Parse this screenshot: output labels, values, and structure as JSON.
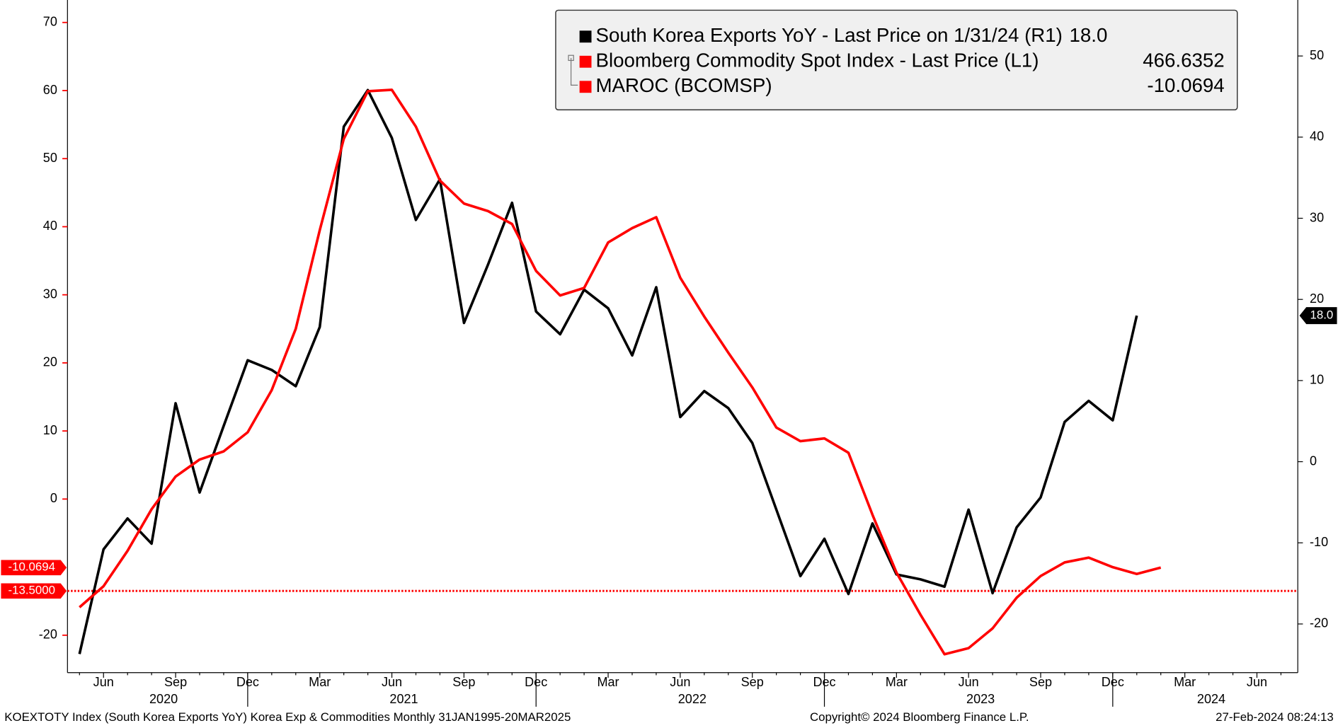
{
  "chart_data": {
    "type": "line",
    "categories": [
      null,
      "Jun",
      null,
      null,
      "Sep",
      null,
      null,
      "Dec",
      null,
      null,
      "Mar",
      null,
      null,
      "Jun",
      null,
      null,
      "Sep",
      null,
      null,
      "Dec",
      null,
      null,
      "Mar",
      null,
      null,
      "Jun",
      null,
      null,
      "Sep",
      null,
      null,
      "Dec",
      null,
      null,
      "Mar",
      null,
      null,
      "Jun",
      null,
      null,
      "Sep",
      null,
      null,
      "Dec",
      null,
      null,
      "Mar",
      null,
      null,
      "Jun",
      null
    ],
    "year_labels": [
      "2020",
      "2021",
      "2022",
      "2023",
      "2024"
    ],
    "series": [
      {
        "name": "South Korea Exports YoY - Last Price on 1/31/24 (R1)",
        "color": "#000000",
        "axis": "y2",
        "last_label": "18.0",
        "values": [
          -23.7,
          -10.8,
          -7.0,
          -10.1,
          7.2,
          -3.8,
          4.4,
          12.5,
          11.3,
          9.3,
          16.6,
          41.3,
          45.8,
          39.9,
          29.8,
          34.8,
          17.1,
          24.3,
          31.9,
          18.5,
          15.7,
          21.2,
          18.9,
          13.1,
          21.5,
          5.5,
          8.7,
          6.6,
          2.3,
          -5.9,
          -14.1,
          -9.5,
          -16.3,
          -7.6,
          -13.9,
          -14.5,
          -15.4,
          -5.9,
          -16.2,
          -8.1,
          -4.4,
          4.9,
          7.5,
          5.1,
          18.0,
          null,
          null,
          null,
          null,
          null,
          null
        ]
      },
      {
        "name": "MAROC (BCOMSP)",
        "color": "#ff0000",
        "axis": "y",
        "last_label": "-10.0694",
        "values": [
          -15.9,
          -12.8,
          -7.6,
          -1.5,
          3.3,
          5.8,
          7.0,
          9.8,
          16.0,
          25.0,
          39.5,
          52.9,
          59.9,
          60.1,
          54.7,
          46.8,
          43.4,
          42.3,
          40.4,
          33.5,
          29.9,
          31.0,
          37.7,
          39.8,
          41.4,
          32.5,
          26.8,
          21.5,
          16.4,
          10.5,
          8.5,
          8.9,
          6.8,
          -2.3,
          -10.8,
          -17.0,
          -22.8,
          -21.9,
          -19.0,
          -14.5,
          -11.3,
          -9.3,
          -8.6,
          -10.0,
          -11.0,
          -10.0694,
          null,
          null,
          null,
          null,
          null
        ]
      }
    ],
    "other_legend": {
      "name": "Bloomberg Commodity Spot Index - Last Price (L1)",
      "color": "#ff0000",
      "value": "466.6352"
    },
    "reference_line": {
      "value": -13.5,
      "label": "-13.5000",
      "color": "#ff0000"
    },
    "xlim": [
      -0.5,
      50.7
    ],
    "ylim": [
      -25.5,
      73.3
    ],
    "yticks": [
      -20,
      0,
      10,
      20,
      30,
      40,
      50,
      60,
      70
    ],
    "y2lim": [
      -26.0,
      56.9
    ],
    "y2ticks": [
      -20,
      -10,
      0,
      10,
      20,
      30,
      40,
      50
    ],
    "footer": {
      "left": "KOEXTOTY Index (South Korea Exports YoY) Korea Exp & Commodities  Monthly 31JAN1995-20MAR2025",
      "center": "Copyright© 2024 Bloomberg Finance L.P.",
      "right": "27-Feb-2024 08:24:13"
    }
  }
}
